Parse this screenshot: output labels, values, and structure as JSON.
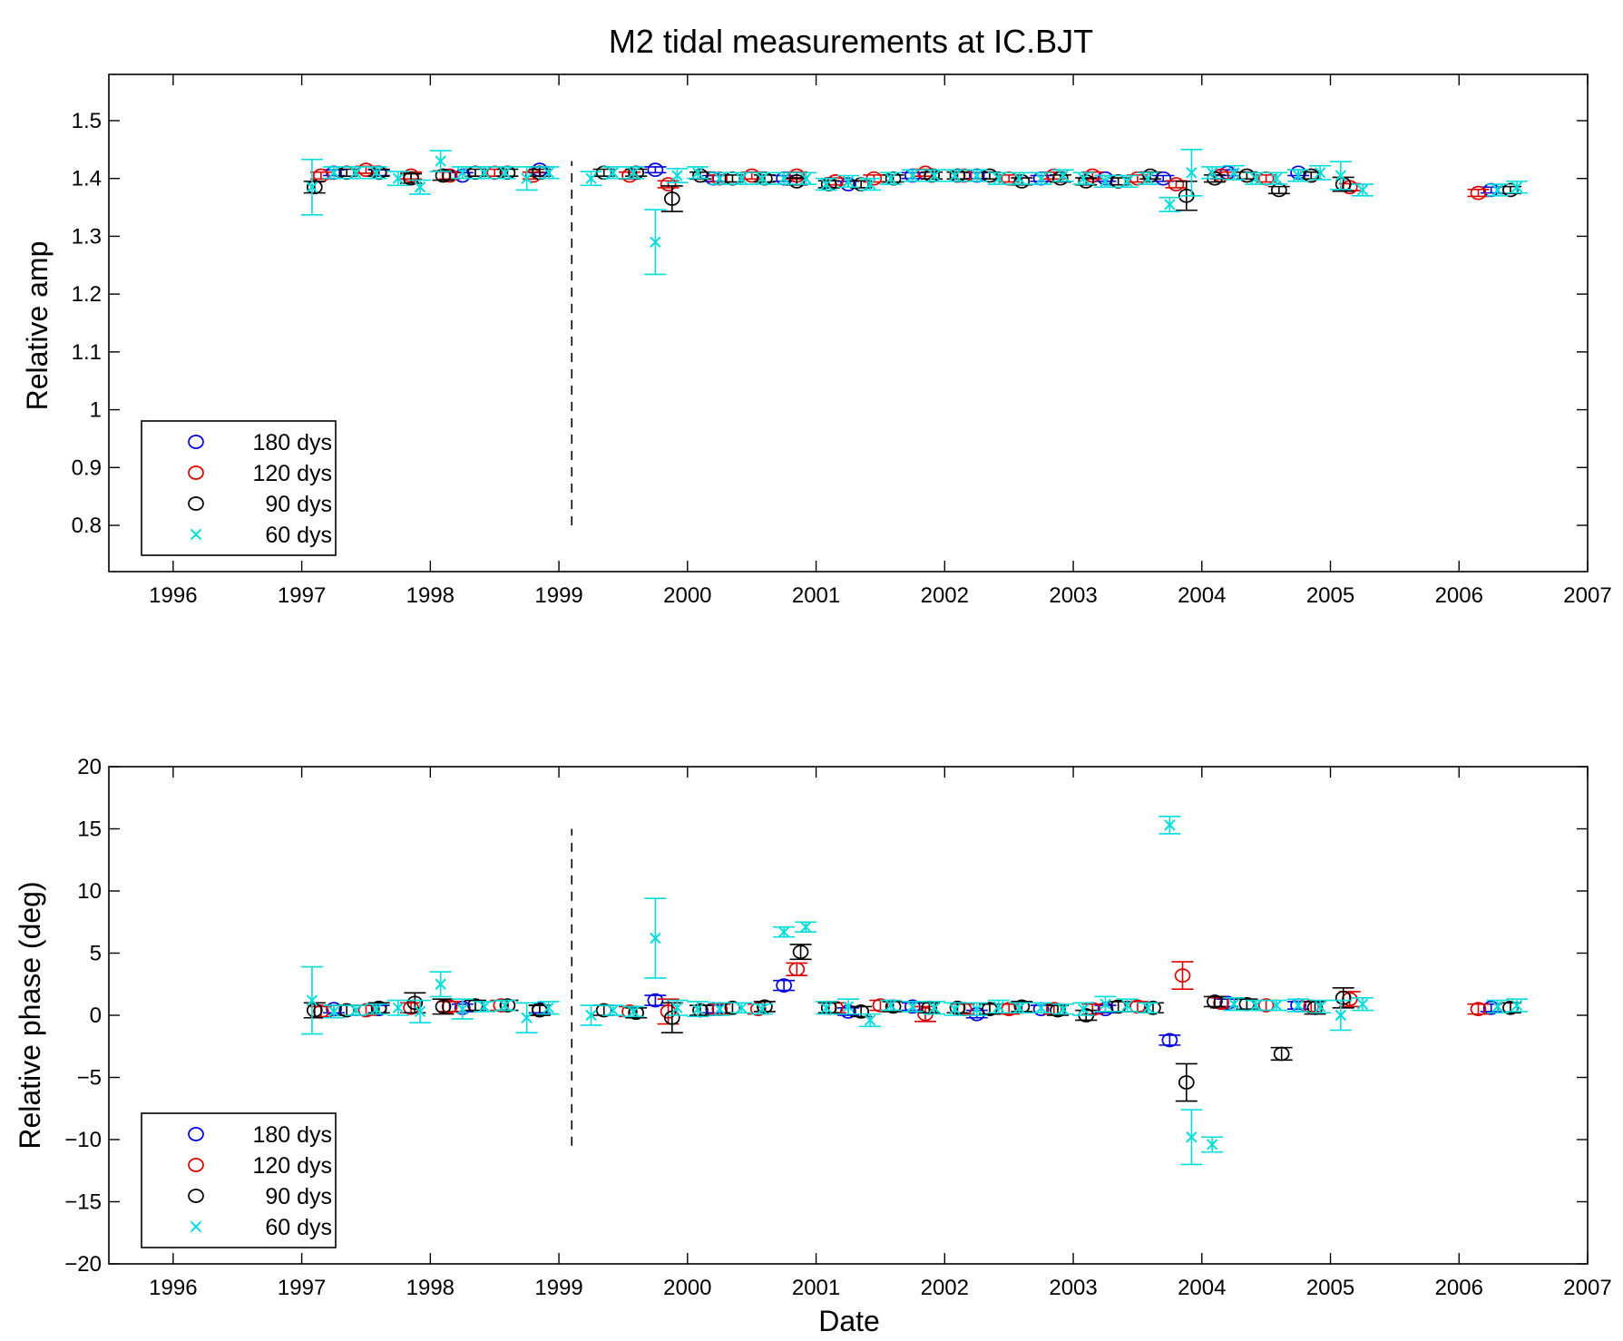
{
  "figure_title": "M2 tidal measurements at IC.BJT",
  "chart_data": [
    {
      "type": "scatter",
      "ylabel": "Relative amp",
      "xlabel": "",
      "xlim": [
        1995.5,
        2007
      ],
      "ylim": [
        0.72,
        1.58
      ],
      "xticks": [
        1996,
        1997,
        1998,
        1999,
        2000,
        2001,
        2002,
        2003,
        2004,
        2005,
        2006,
        2007
      ],
      "xtick_labels": [
        "1996",
        "1997",
        "1998",
        "1999",
        "2000",
        "2001",
        "2002",
        "2003",
        "2004",
        "2005",
        "2006",
        "2007"
      ],
      "yticks": [
        0.8,
        0.9,
        1,
        1.1,
        1.2,
        1.3,
        1.4,
        1.5
      ],
      "ytick_labels": [
        "0.8",
        "0.9",
        "1",
        "1.1",
        "1.2",
        "1.3",
        "1.4",
        "1.5"
      ],
      "vline": {
        "x": 1999.1,
        "y_range": [
          0.8,
          1.43
        ],
        "style": "dashed"
      },
      "legend": {
        "position": "bottom-left"
      },
      "series": [
        {
          "name": "180 dys",
          "marker": "circle",
          "color": "#0000dd",
          "x": [
            1997.25,
            1997.6,
            1998.25,
            1998.85,
            1999.75,
            2000.2,
            2000.75,
            2001.25,
            2001.75,
            2002.25,
            2002.75,
            2003.25,
            2003.7,
            2004.2,
            2004.75,
            2006.25
          ],
          "y": [
            1.41,
            1.41,
            1.405,
            1.415,
            1.415,
            1.4,
            1.4,
            1.39,
            1.405,
            1.405,
            1.4,
            1.4,
            1.4,
            1.41,
            1.41,
            1.38
          ],
          "err": [
            0.005,
            0.005,
            0.005,
            0.005,
            0.005,
            0.005,
            0.005,
            0.005,
            0.005,
            0.005,
            0.005,
            0.005,
            0.005,
            0.005,
            0.005,
            0.005
          ]
        },
        {
          "name": "120 dys",
          "marker": "circle",
          "color": "#dd0000",
          "x": [
            1997.15,
            1997.5,
            1997.85,
            1998.15,
            1998.5,
            1998.8,
            1999.55,
            1999.85,
            2000.25,
            2000.5,
            2000.85,
            2001.15,
            2001.45,
            2001.85,
            2002.15,
            2002.5,
            2002.85,
            2003.15,
            2003.5,
            2003.8,
            2004.15,
            2004.5,
            2004.85,
            2005.15,
            2006.15
          ],
          "y": [
            1.405,
            1.415,
            1.405,
            1.405,
            1.41,
            1.405,
            1.405,
            1.39,
            1.4,
            1.405,
            1.405,
            1.395,
            1.4,
            1.41,
            1.405,
            1.4,
            1.405,
            1.405,
            1.4,
            1.39,
            1.405,
            1.4,
            1.405,
            1.385,
            1.375
          ],
          "err": [
            0.006,
            0.006,
            0.006,
            0.006,
            0.006,
            0.006,
            0.006,
            0.006,
            0.006,
            0.006,
            0.006,
            0.006,
            0.006,
            0.006,
            0.006,
            0.006,
            0.006,
            0.006,
            0.006,
            0.006,
            0.006,
            0.006,
            0.006,
            0.006,
            0.006
          ]
        },
        {
          "name": "90 dys",
          "marker": "circle",
          "color": "#000000",
          "x": [
            1997.1,
            1997.35,
            1997.6,
            1997.85,
            1998.1,
            1998.35,
            1998.6,
            1998.85,
            1999.35,
            1999.6,
            1999.88,
            2000.1,
            2000.35,
            2000.6,
            2000.85,
            2001.1,
            2001.35,
            2001.6,
            2001.9,
            2002.1,
            2002.35,
            2002.6,
            2002.9,
            2003.1,
            2003.35,
            2003.6,
            2003.88,
            2004.1,
            2004.35,
            2004.6,
            2004.85,
            2005.1,
            2006.4
          ],
          "y": [
            1.385,
            1.41,
            1.41,
            1.4,
            1.405,
            1.41,
            1.41,
            1.41,
            1.41,
            1.41,
            1.365,
            1.405,
            1.4,
            1.4,
            1.395,
            1.39,
            1.39,
            1.4,
            1.405,
            1.405,
            1.405,
            1.395,
            1.4,
            1.395,
            1.395,
            1.405,
            1.37,
            1.4,
            1.405,
            1.38,
            1.405,
            1.39,
            1.38
          ],
          "err": [
            0.01,
            0.006,
            0.006,
            0.008,
            0.008,
            0.006,
            0.006,
            0.006,
            0.006,
            0.006,
            0.022,
            0.006,
            0.006,
            0.006,
            0.006,
            0.006,
            0.006,
            0.006,
            0.006,
            0.006,
            0.006,
            0.006,
            0.006,
            0.006,
            0.006,
            0.006,
            0.025,
            0.006,
            0.006,
            0.006,
            0.006,
            0.012,
            0.006
          ]
        },
        {
          "name": "60 dys",
          "marker": "x",
          "color": "#00dddd",
          "x": [
            1997.08,
            1997.25,
            1997.42,
            1997.58,
            1997.75,
            1997.92,
            1998.08,
            1998.25,
            1998.42,
            1998.58,
            1998.75,
            1998.92,
            1999.25,
            1999.42,
            1999.58,
            1999.75,
            1999.92,
            2000.08,
            2000.25,
            2000.42,
            2000.58,
            2000.75,
            2000.92,
            2001.08,
            2001.25,
            2001.42,
            2001.58,
            2001.75,
            2001.92,
            2002.08,
            2002.25,
            2002.42,
            2002.58,
            2002.75,
            2002.92,
            2003.08,
            2003.25,
            2003.42,
            2003.58,
            2003.75,
            2003.92,
            2004.08,
            2004.25,
            2004.42,
            2004.58,
            2004.75,
            2004.92,
            2005.08,
            2005.25,
            2006.3,
            2006.45
          ],
          "y": [
            1.385,
            1.41,
            1.41,
            1.41,
            1.4,
            1.385,
            1.43,
            1.41,
            1.41,
            1.41,
            1.4,
            1.41,
            1.4,
            1.41,
            1.41,
            1.29,
            1.405,
            1.41,
            1.4,
            1.4,
            1.4,
            1.4,
            1.4,
            1.39,
            1.395,
            1.39,
            1.4,
            1.405,
            1.405,
            1.405,
            1.405,
            1.4,
            1.4,
            1.4,
            1.405,
            1.4,
            1.395,
            1.395,
            1.4,
            1.355,
            1.41,
            1.41,
            1.41,
            1.4,
            1.4,
            1.405,
            1.41,
            1.405,
            1.38,
            1.38,
            1.385
          ],
          "err": [
            0.048,
            0.01,
            0.01,
            0.01,
            0.012,
            0.012,
            0.018,
            0.01,
            0.01,
            0.01,
            0.02,
            0.01,
            0.012,
            0.01,
            0.01,
            0.056,
            0.012,
            0.01,
            0.01,
            0.01,
            0.01,
            0.01,
            0.01,
            0.01,
            0.01,
            0.01,
            0.01,
            0.01,
            0.01,
            0.01,
            0.01,
            0.01,
            0.01,
            0.01,
            0.01,
            0.01,
            0.01,
            0.01,
            0.01,
            0.012,
            0.04,
            0.01,
            0.012,
            0.01,
            0.01,
            0.01,
            0.012,
            0.024,
            0.01,
            0.01,
            0.01
          ]
        }
      ]
    },
    {
      "type": "scatter",
      "ylabel": "Relative phase (deg)",
      "xlabel": "Date",
      "xlim": [
        1995.5,
        2007
      ],
      "ylim": [
        -20,
        20
      ],
      "xticks": [
        1996,
        1997,
        1998,
        1999,
        2000,
        2001,
        2002,
        2003,
        2004,
        2005,
        2006,
        2007
      ],
      "xtick_labels": [
        "1996",
        "1997",
        "1998",
        "1999",
        "2000",
        "2001",
        "2002",
        "2003",
        "2004",
        "2005",
        "2006",
        "2007"
      ],
      "yticks": [
        -20,
        -15,
        -10,
        -5,
        0,
        5,
        10,
        15,
        20
      ],
      "ytick_labels": [
        "−20",
        "−15",
        "−10",
        "−5",
        "0",
        "5",
        "10",
        "15",
        "20"
      ],
      "vline": {
        "x": 1999.1,
        "y_range": [
          -10.5,
          15
        ],
        "style": "dashed"
      },
      "legend": {
        "position": "bottom-left"
      },
      "series": [
        {
          "name": "180 dys",
          "marker": "circle",
          "color": "#0000dd",
          "x": [
            1997.25,
            1997.6,
            1998.25,
            1998.85,
            1999.75,
            2000.2,
            2000.75,
            2001.25,
            2001.75,
            2002.25,
            2002.75,
            2003.25,
            2003.75,
            2004.2,
            2004.75,
            2006.25
          ],
          "y": [
            0.5,
            0.5,
            0.6,
            0.5,
            1.2,
            0.5,
            2.4,
            0.3,
            0.7,
            0.1,
            0.5,
            0.5,
            -2.0,
            1.0,
            0.8,
            0.6
          ],
          "err": [
            0.3,
            0.3,
            0.3,
            0.3,
            0.4,
            0.3,
            0.4,
            0.3,
            0.3,
            0.3,
            0.3,
            0.3,
            0.4,
            0.3,
            0.3,
            0.3
          ]
        },
        {
          "name": "120 dys",
          "marker": "circle",
          "color": "#dd0000",
          "x": [
            1997.15,
            1997.5,
            1997.85,
            1998.15,
            1998.55,
            1998.85,
            1999.55,
            1999.85,
            2000.25,
            2000.55,
            2000.85,
            2001.15,
            2001.5,
            2001.85,
            2002.15,
            2002.5,
            2002.85,
            2003.15,
            2003.5,
            2003.85,
            2004.15,
            2004.5,
            2004.85,
            2005.15,
            2006.15
          ],
          "y": [
            0.3,
            0.4,
            0.6,
            0.7,
            0.8,
            0.4,
            0.3,
            0.3,
            0.5,
            0.5,
            3.7,
            0.6,
            0.8,
            0.1,
            0.5,
            0.5,
            0.5,
            0.5,
            0.7,
            3.2,
            1.0,
            0.8,
            0.7,
            1.3,
            0.5
          ],
          "err": [
            0.4,
            0.4,
            0.4,
            0.4,
            0.4,
            0.4,
            0.4,
            1.0,
            0.4,
            0.4,
            0.5,
            0.4,
            0.4,
            0.6,
            0.4,
            0.4,
            0.4,
            0.4,
            0.4,
            1.1,
            0.4,
            0.4,
            0.4,
            0.6,
            0.4
          ]
        },
        {
          "name": "90 dys",
          "marker": "circle",
          "color": "#000000",
          "x": [
            1997.1,
            1997.35,
            1997.6,
            1997.88,
            1998.1,
            1998.35,
            1998.6,
            1998.85,
            1999.35,
            1999.6,
            1999.88,
            2000.1,
            2000.35,
            2000.6,
            2000.88,
            2001.1,
            2001.35,
            2001.6,
            2001.88,
            2002.1,
            2002.35,
            2002.6,
            2002.88,
            2003.1,
            2003.35,
            2003.62,
            2003.88,
            2004.1,
            2004.35,
            2004.62,
            2004.88,
            2005.1,
            2006.4
          ],
          "y": [
            0.4,
            0.4,
            0.6,
            1.0,
            0.7,
            0.8,
            0.8,
            0.4,
            0.4,
            0.2,
            -0.2,
            0.4,
            0.6,
            0.7,
            5.1,
            0.6,
            0.3,
            0.7,
            0.6,
            0.6,
            0.5,
            0.7,
            0.4,
            0.0,
            0.7,
            0.6,
            -5.4,
            1.1,
            0.9,
            -3.1,
            0.6,
            1.4,
            0.6
          ],
          "err": [
            0.6,
            0.4,
            0.4,
            0.8,
            0.6,
            0.4,
            0.4,
            0.4,
            0.4,
            0.4,
            1.2,
            0.4,
            0.4,
            0.4,
            0.6,
            0.4,
            0.4,
            0.4,
            0.4,
            0.4,
            0.4,
            0.4,
            0.4,
            0.4,
            0.4,
            0.4,
            1.5,
            0.4,
            0.4,
            0.5,
            0.5,
            0.8,
            0.4
          ]
        },
        {
          "name": "60 dys",
          "marker": "x",
          "color": "#00dddd",
          "x": [
            1997.08,
            1997.25,
            1997.42,
            1997.58,
            1997.75,
            1997.92,
            1998.08,
            1998.25,
            1998.42,
            1998.58,
            1998.75,
            1998.92,
            1999.25,
            1999.42,
            1999.58,
            1999.75,
            1999.92,
            2000.08,
            2000.25,
            2000.42,
            2000.58,
            2000.75,
            2000.92,
            2001.08,
            2001.25,
            2001.42,
            2001.58,
            2001.75,
            2001.92,
            2002.08,
            2002.25,
            2002.42,
            2002.58,
            2002.75,
            2002.92,
            2003.08,
            2003.25,
            2003.42,
            2003.58,
            2003.75,
            2003.92,
            2004.08,
            2004.25,
            2004.42,
            2004.58,
            2004.75,
            2004.92,
            2005.08,
            2005.25,
            2006.3,
            2006.45
          ],
          "y": [
            1.2,
            0.3,
            0.4,
            0.5,
            0.6,
            0.3,
            2.5,
            0.5,
            0.7,
            0.8,
            -0.2,
            0.6,
            0.0,
            0.4,
            0.3,
            6.2,
            0.6,
            0.5,
            0.5,
            0.6,
            0.5,
            6.7,
            7.1,
            0.6,
            0.7,
            -0.4,
            0.8,
            0.7,
            0.6,
            0.5,
            0.5,
            0.7,
            0.6,
            0.6,
            0.5,
            0.5,
            0.9,
            0.8,
            0.6,
            15.3,
            -9.8,
            -10.4,
            0.9,
            0.8,
            0.8,
            0.8,
            0.7,
            0.0,
            0.9,
            0.7,
            0.8
          ],
          "err": [
            2.7,
            0.5,
            0.4,
            0.4,
            0.6,
            0.9,
            1.0,
            0.8,
            0.4,
            0.4,
            1.2,
            0.5,
            0.8,
            0.4,
            0.4,
            3.2,
            0.6,
            0.6,
            0.5,
            0.4,
            0.4,
            0.4,
            0.4,
            0.5,
            0.6,
            0.5,
            0.4,
            0.4,
            0.5,
            0.5,
            0.5,
            0.5,
            0.4,
            0.4,
            0.4,
            0.5,
            0.6,
            0.5,
            0.4,
            0.7,
            2.2,
            0.6,
            0.5,
            0.4,
            0.4,
            0.5,
            0.5,
            1.2,
            0.5,
            0.5,
            0.5
          ]
        }
      ]
    }
  ]
}
